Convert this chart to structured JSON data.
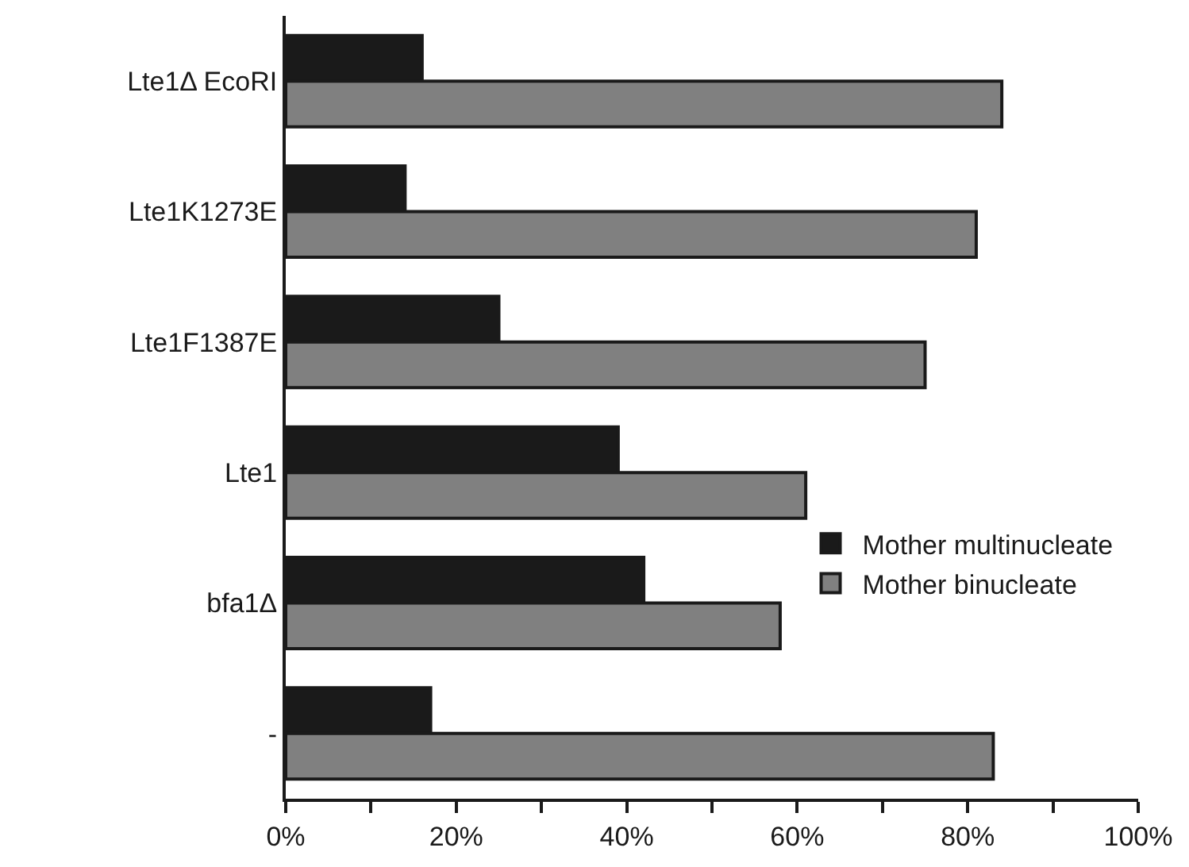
{
  "chart_data": {
    "type": "bar",
    "orientation": "horizontal",
    "categories": [
      "Lte1Δ EcoRI",
      "Lte1K1273E",
      "Lte1F1387E",
      "Lte1",
      "bfa1Δ",
      "-"
    ],
    "series": [
      {
        "name": "Mother multinucleate",
        "color": "#1a1a1a",
        "values": [
          16,
          14,
          25,
          39,
          42,
          17
        ]
      },
      {
        "name": "Mother binucleate",
        "color": "#808080",
        "values": [
          84,
          81,
          75,
          61,
          58,
          83
        ]
      }
    ],
    "xlim": [
      0,
      100
    ],
    "xticks": [
      {
        "value": 0,
        "label": "0%"
      },
      {
        "value": 10,
        "label": null
      },
      {
        "value": 20,
        "label": "20%"
      },
      {
        "value": 30,
        "label": null
      },
      {
        "value": 40,
        "label": "40%"
      },
      {
        "value": 50,
        "label": null
      },
      {
        "value": 60,
        "label": "60%"
      },
      {
        "value": 70,
        "label": null
      },
      {
        "value": 80,
        "label": "80%"
      },
      {
        "value": 90,
        "label": null
      },
      {
        "value": 100,
        "label": "100%"
      }
    ],
    "legend": "bottom right"
  }
}
